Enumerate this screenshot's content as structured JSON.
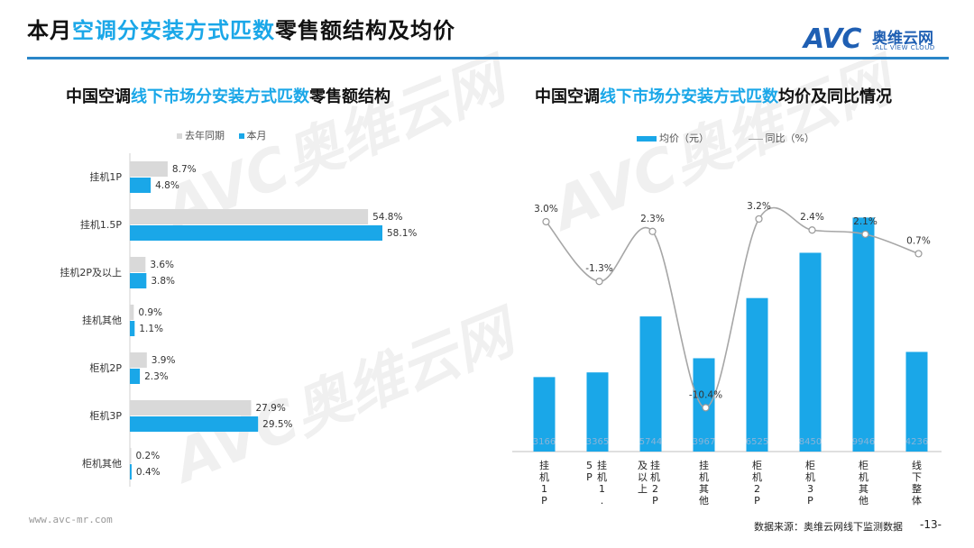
{
  "header": {
    "title_pre": "本月",
    "title_hl": "空调分安装方式匹数",
    "title_post": "零售额结构及均价",
    "logo_mark": "AVC",
    "logo_cn": "奥维云网",
    "logo_en": "ALL VIEW CLOUD"
  },
  "left_chart": {
    "title_pre": "中国空调",
    "title_hl": "线下市场分安装方式匹数",
    "title_post": "零售额结构",
    "legend_prev": "去年同期",
    "legend_curr": "本月"
  },
  "right_chart": {
    "title_pre": "中国空调",
    "title_hl": "线下市场分安装方式匹数",
    "title_post": "均价及同比情况",
    "legend_bar": "均价（元）",
    "legend_line": "同比（%）"
  },
  "colors": {
    "accent": "#1aa7e8",
    "prev": "#d9d9d9",
    "line": "#a6a6a6",
    "rule": "#2a86c8"
  },
  "chart_data": [
    {
      "type": "bar",
      "orientation": "horizontal",
      "categories": [
        "挂机1P",
        "挂机1.5P",
        "挂机2P及以上",
        "挂机其他",
        "柜机2P",
        "柜机3P",
        "柜机其他"
      ],
      "series": [
        {
          "name": "去年同期",
          "values": [
            8.7,
            54.8,
            3.6,
            0.9,
            3.9,
            27.9,
            0.2
          ],
          "labels": [
            "8.7%",
            "54.8%",
            "3.6%",
            "0.9%",
            "3.9%",
            "27.9%",
            "0.2%"
          ]
        },
        {
          "name": "本月",
          "values": [
            4.8,
            58.1,
            3.8,
            1.1,
            2.3,
            29.5,
            0.4
          ],
          "labels": [
            "4.8%",
            "58.1%",
            "3.8%",
            "1.1%",
            "2.3%",
            "29.5%",
            "0.4%"
          ]
        }
      ],
      "unit": "%"
    },
    {
      "type": "bar",
      "categories": [
        "挂机1P",
        "挂机1.5P",
        "挂机2P及以上",
        "挂机其他",
        "柜机2P",
        "柜机3P",
        "柜机其他",
        "线下整体"
      ],
      "series": [
        {
          "name": "均价（元）",
          "type": "bar",
          "values": [
            3166,
            3365,
            5744,
            3967,
            6525,
            8450,
            9946,
            4236
          ]
        },
        {
          "name": "同比（%）",
          "type": "line",
          "values": [
            3.0,
            -1.3,
            2.3,
            -10.4,
            3.2,
            2.4,
            2.1,
            0.7
          ],
          "labels": [
            "3.0%",
            "-1.3%",
            "2.3%",
            "-10.4%",
            "3.2%",
            "2.4%",
            "2.1%",
            "0.7%"
          ]
        }
      ]
    }
  ],
  "footer": {
    "site": "www.avc-mr.com",
    "source": "数据来源：奥维云网线下监测数据",
    "page": "-13-"
  }
}
